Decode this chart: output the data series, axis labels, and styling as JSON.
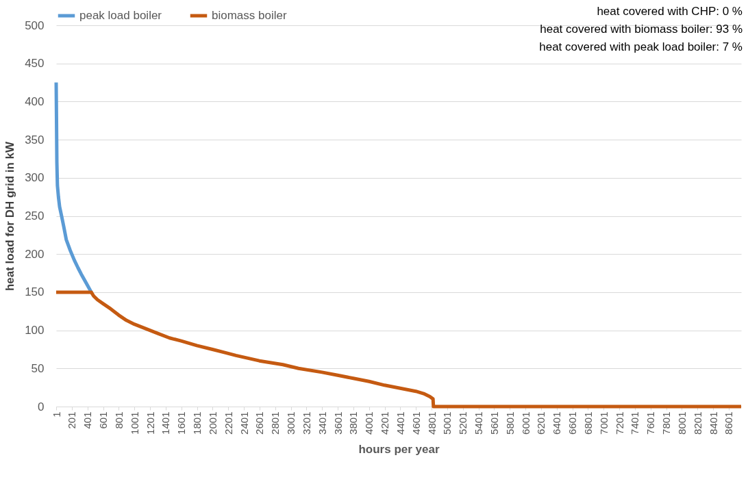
{
  "chart_data": {
    "type": "line",
    "xlabel": "hours per year",
    "ylabel": "heat load for DH grid in kW",
    "annotations": [
      "heat covered with CHP: 0 %",
      "heat covered with biomass boiler: 93 %",
      "heat covered with peak load boiler: 7 %"
    ],
    "series": [
      {
        "name": "peak load boiler",
        "color": "#5b9bd5",
        "x": [
          1,
          5,
          10,
          17,
          30,
          45,
          70,
          100,
          130,
          180,
          233,
          280,
          320,
          380,
          450
        ],
        "values": [
          425,
          380,
          320,
          290,
          275,
          262,
          250,
          235,
          219,
          205,
          192,
          182,
          174,
          163,
          150
        ]
      },
      {
        "name": "biomass boiler",
        "color": "#c55a11",
        "x": [
          1,
          450,
          480,
          530,
          600,
          700,
          800,
          900,
          1000,
          1150,
          1300,
          1450,
          1600,
          1800,
          2000,
          2150,
          2300,
          2600,
          2900,
          3100,
          3400,
          3600,
          3800,
          4000,
          4200,
          4400,
          4600,
          4700,
          4780,
          4820,
          4825,
          4830,
          8760
        ],
        "values": [
          150,
          150,
          145,
          140,
          135,
          128,
          120,
          113,
          108,
          102,
          96,
          90,
          86,
          80,
          75,
          71,
          67,
          60,
          55,
          50,
          45,
          41,
          37,
          33,
          28,
          24,
          20,
          17,
          13,
          10,
          0,
          0,
          0
        ]
      }
    ],
    "xlim": [
      1,
      8760
    ],
    "xticks": [
      1,
      201,
      401,
      601,
      801,
      1001,
      1201,
      1401,
      1601,
      1801,
      2001,
      2201,
      2401,
      2601,
      2801,
      3001,
      3201,
      3401,
      3601,
      3801,
      4001,
      4201,
      4401,
      4601,
      4801,
      5001,
      5201,
      5401,
      5601,
      5801,
      6001,
      6201,
      6401,
      6601,
      6801,
      7001,
      7201,
      7401,
      7601,
      7801,
      8001,
      8201,
      8401,
      8601
    ],
    "ylim": [
      0,
      500
    ],
    "yticks": [
      0,
      50,
      100,
      150,
      200,
      250,
      300,
      350,
      400,
      450,
      500
    ],
    "grid": "y",
    "legend": "top",
    "marker": "none",
    "line_style": "solid"
  }
}
